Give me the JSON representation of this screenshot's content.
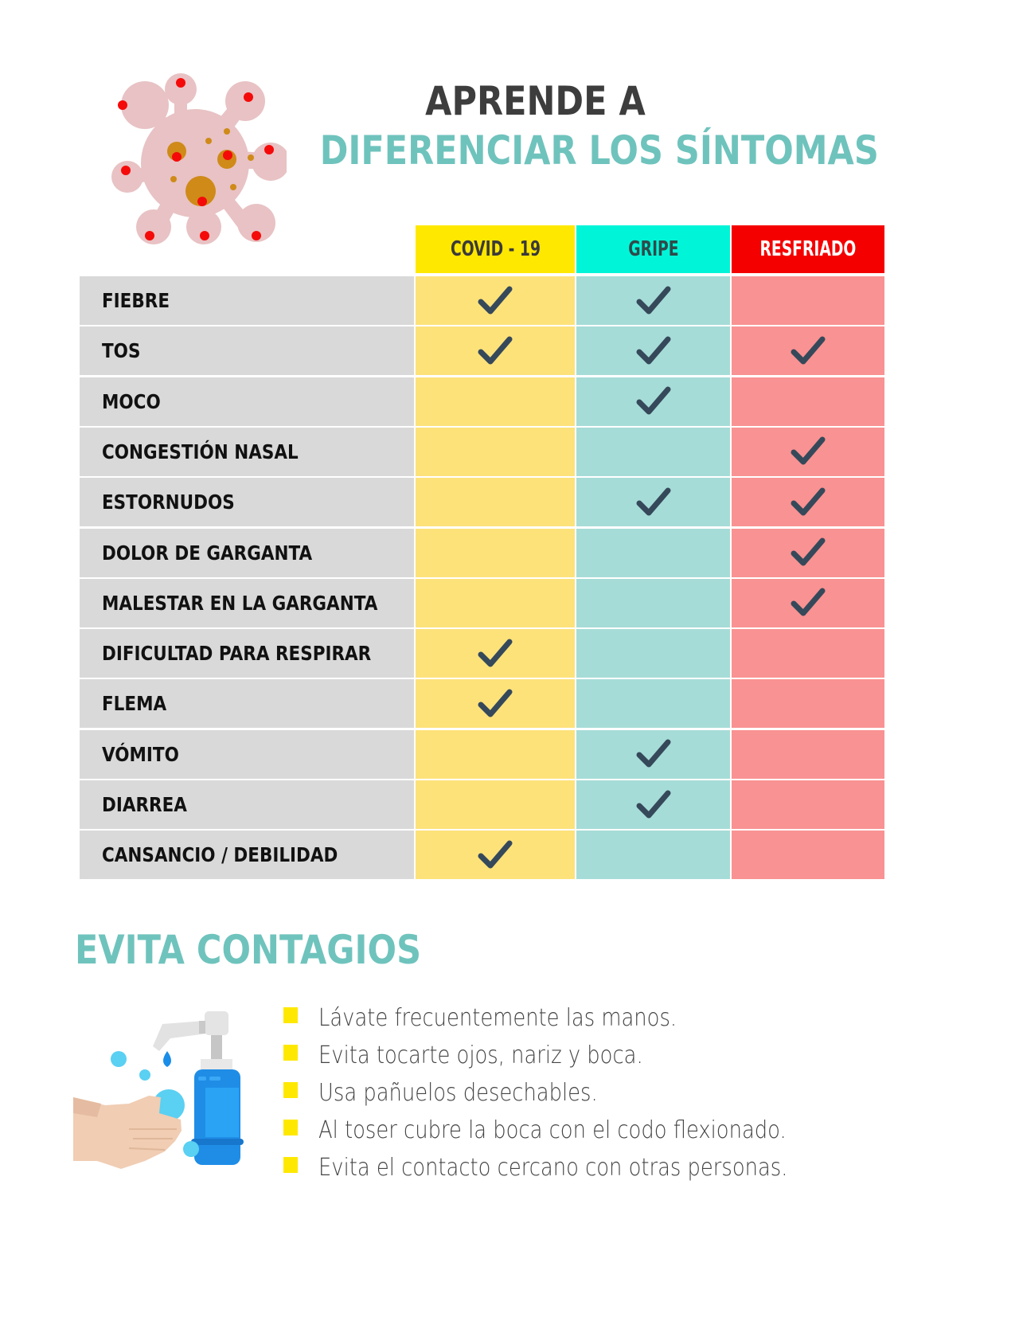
{
  "header": {
    "title_line1": "APRENDE A",
    "title_line2": "DIFERENCIAR LOS SÍNTOMAS",
    "illustration": "virus-icon"
  },
  "colors": {
    "title_dark": "#3d3d3d",
    "accent_teal": "#6fc3bd",
    "covid_header": "#ffe800",
    "gripe_header": "#00f5d8",
    "resfriado_header": "#f50000",
    "covid_cell": "#fde27a",
    "gripe_cell": "#a6dcd7",
    "resfriado_cell": "#f99292",
    "label_cell": "#d9d9d9",
    "check": "#35495a",
    "bullet": "#ffe800"
  },
  "table": {
    "columns": [
      {
        "label": "COVID - 19",
        "key": "covid"
      },
      {
        "label": "GRIPE",
        "key": "gripe"
      },
      {
        "label": "RESFRIADO",
        "key": "resfriado"
      }
    ],
    "rows": [
      {
        "symptom": "FIEBRE",
        "covid": true,
        "gripe": true,
        "resfriado": false
      },
      {
        "symptom": "TOS",
        "covid": true,
        "gripe": true,
        "resfriado": true
      },
      {
        "symptom": "MOCO",
        "covid": false,
        "gripe": true,
        "resfriado": false
      },
      {
        "symptom": "CONGESTIÓN NASAL",
        "covid": false,
        "gripe": false,
        "resfriado": true
      },
      {
        "symptom": "ESTORNUDOS",
        "covid": false,
        "gripe": true,
        "resfriado": true
      },
      {
        "symptom": "DOLOR DE GARGANTA",
        "covid": false,
        "gripe": false,
        "resfriado": true
      },
      {
        "symptom": "MALESTAR EN LA GARGANTA",
        "covid": false,
        "gripe": false,
        "resfriado": true
      },
      {
        "symptom": "DIFICULTAD PARA RESPIRAR",
        "covid": true,
        "gripe": false,
        "resfriado": false
      },
      {
        "symptom": "FLEMA",
        "covid": true,
        "gripe": false,
        "resfriado": false
      },
      {
        "symptom": "VÓMITO",
        "covid": false,
        "gripe": true,
        "resfriado": false
      },
      {
        "symptom": "DIARREA",
        "covid": false,
        "gripe": true,
        "resfriado": false
      },
      {
        "symptom": "CANSANCIO / DEBILIDAD",
        "covid": true,
        "gripe": false,
        "resfriado": false
      }
    ],
    "check_icon": "checkmark-icon"
  },
  "prevention": {
    "title": "EVITA CONTAGIOS",
    "illustration": "hand-wash-soap-icon",
    "tips": [
      "Lávate frecuentemente las manos.",
      "Evita tocarte ojos, nariz y boca.",
      "Usa pañuelos desechables.",
      "Al toser cubre la boca con el codo flexionado.",
      "Evita el contacto cercano con otras personas."
    ]
  }
}
